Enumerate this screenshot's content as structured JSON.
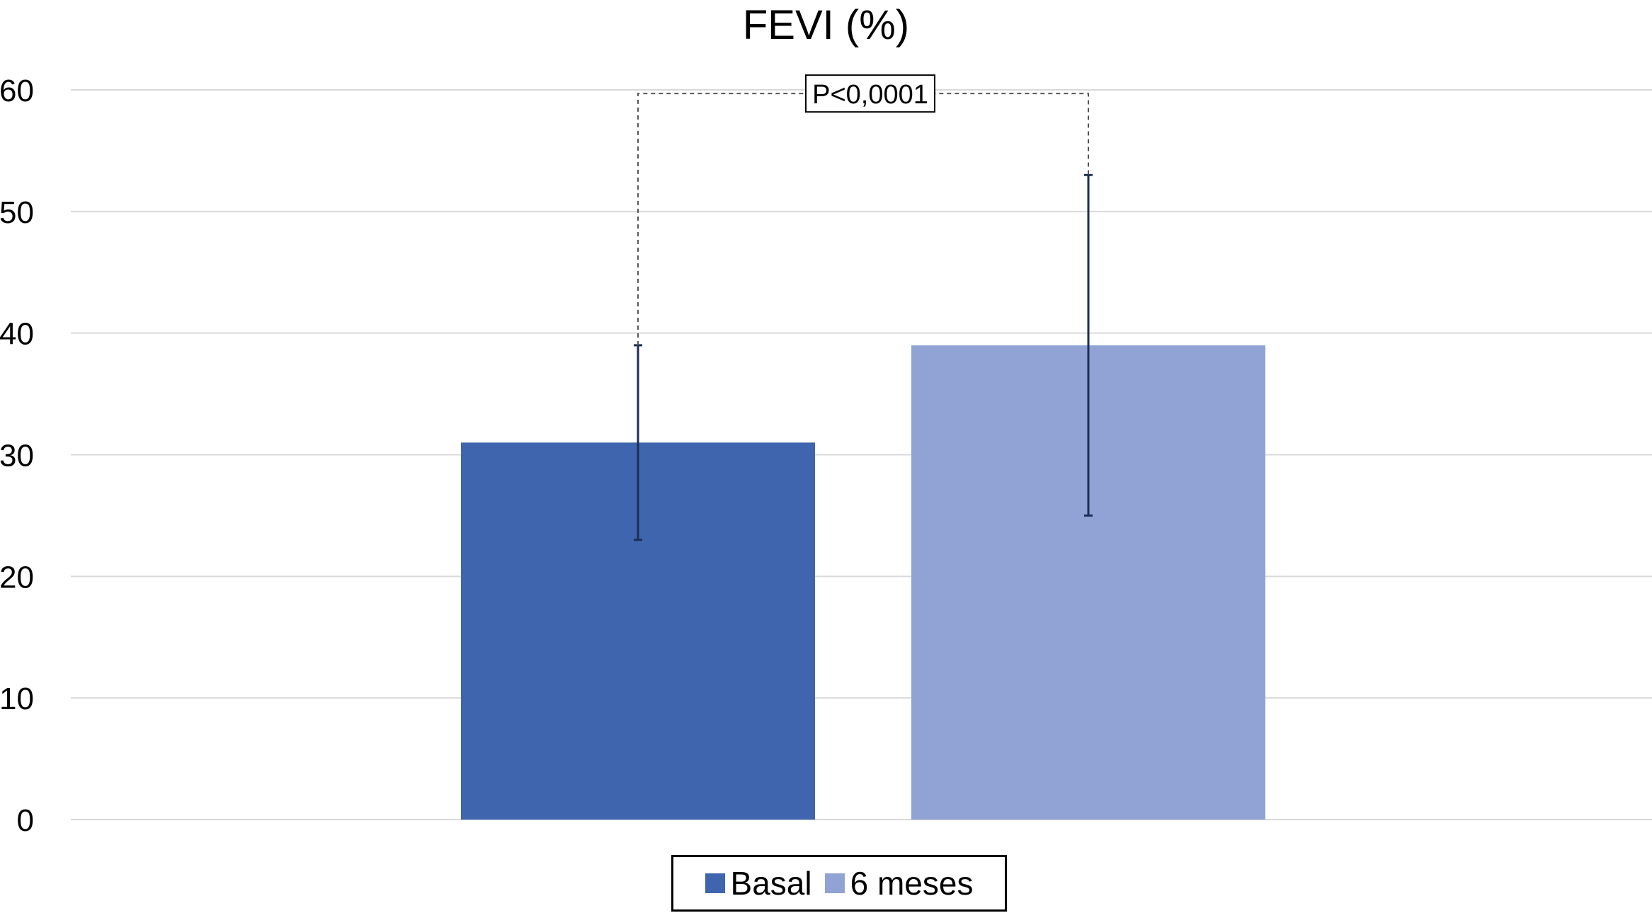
{
  "chart_data": {
    "type": "bar",
    "title": "FEVI (%)",
    "xlabel": "",
    "ylabel": "",
    "ylim": [
      0,
      60
    ],
    "yticks": [
      0,
      10,
      20,
      30,
      40,
      50,
      60
    ],
    "grid": true,
    "legend_position": "bottom-center",
    "series": [
      {
        "name": "Basal",
        "value": 31,
        "error_low": 23,
        "error_high": 39,
        "color": "#3e65ad"
      },
      {
        "name": "6 meses",
        "value": 39,
        "error_low": 25,
        "error_high": 53,
        "color": "#91a3d4"
      }
    ],
    "annotation": {
      "text": "P<0,0001",
      "level": 59.7
    }
  }
}
